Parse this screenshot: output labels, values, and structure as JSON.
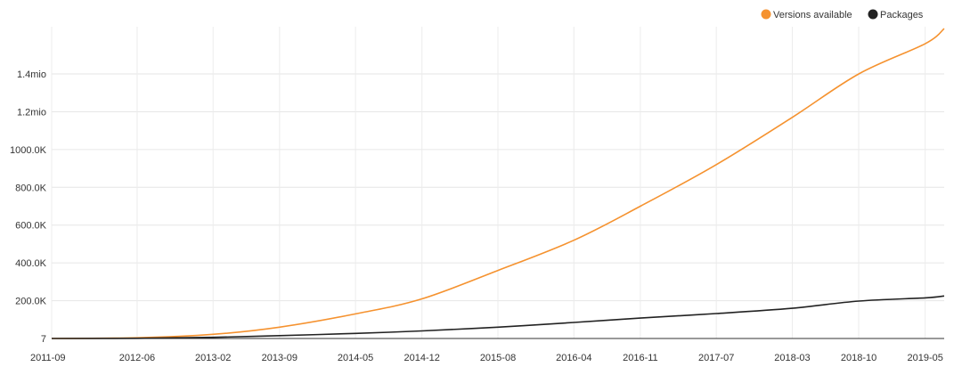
{
  "chart_data": {
    "type": "line",
    "title": "",
    "xlabel": "",
    "ylabel": "",
    "x_tick_labels": [
      "2011-09",
      "2012-06",
      "2013-02",
      "2013-09",
      "2014-05",
      "2014-12",
      "2015-08",
      "2016-04",
      "2016-11",
      "2017-07",
      "2018-03",
      "2018-10",
      "2019-05"
    ],
    "y_tick_labels": [
      "7",
      "200.0K",
      "400.0K",
      "600.0K",
      "800.0K",
      "1000.0K",
      "1.2mio",
      "1.4mio"
    ],
    "x_range": [
      "2011-09",
      "2019-07"
    ],
    "ylim": [
      7,
      1650000
    ],
    "grid": true,
    "legend_position": "top-right",
    "x": [
      "2011-09",
      "2012-06",
      "2013-02",
      "2013-09",
      "2014-05",
      "2014-12",
      "2015-08",
      "2016-04",
      "2016-11",
      "2017-07",
      "2018-03",
      "2018-10",
      "2019-05",
      "2019-07"
    ],
    "series": [
      {
        "name": "Versions available",
        "color": "#f5922f",
        "values": [
          7,
          4000,
          22000,
          60000,
          130000,
          210000,
          360000,
          520000,
          700000,
          920000,
          1170000,
          1400000,
          1560000,
          1640000
        ]
      },
      {
        "name": "Packages",
        "color": "#222222",
        "values": [
          7,
          800,
          6000,
          15000,
          27000,
          40000,
          60000,
          85000,
          108000,
          132000,
          160000,
          198000,
          215000,
          225000
        ]
      }
    ]
  }
}
